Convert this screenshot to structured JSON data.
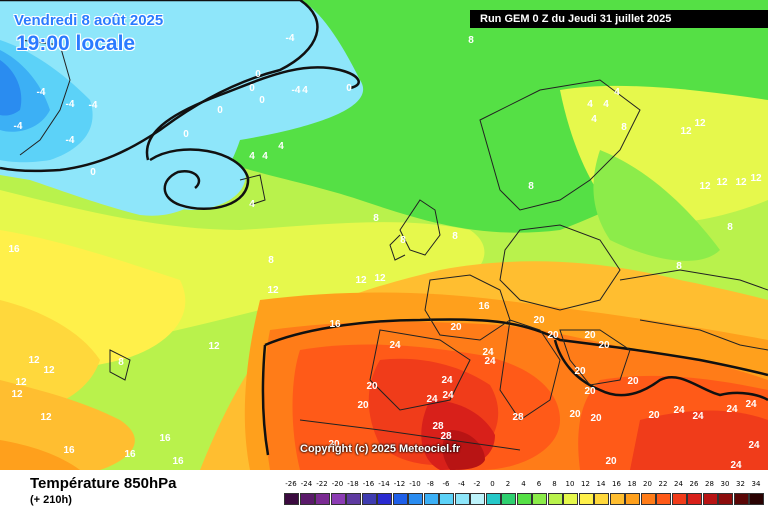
{
  "header": {
    "date": "Vendredi 8 août 2025",
    "time": "19:00 locale",
    "run_info": "Run GEM 0 Z du Jeudi 31 juillet 2025"
  },
  "copyright": "Copyright (c) 2025 Meteociel.fr",
  "footer": {
    "parameter": "Température 850hPa",
    "lead_time": "(+ 210h)"
  },
  "legend": {
    "values": [
      "-26",
      "-24",
      "-22",
      "-20",
      "-18",
      "-16",
      "-14",
      "-12",
      "-10",
      "-8",
      "-6",
      "-4",
      "-2",
      "0",
      "2",
      "4",
      "6",
      "8",
      "10",
      "12",
      "14",
      "16",
      "18",
      "20",
      "22",
      "24",
      "26",
      "28",
      "30",
      "32",
      "34"
    ],
    "colors": [
      "#3b0a3f",
      "#5a1a6a",
      "#7a2a92",
      "#8c3cb4",
      "#5e3aa0",
      "#3f3cb0",
      "#2a2ad0",
      "#1f5fe8",
      "#2a8cf0",
      "#3cb0f5",
      "#5cd2f8",
      "#8ee6fa",
      "#bdf3fb",
      "#26c8c8",
      "#2fd070",
      "#55e045",
      "#8cec4a",
      "#b9f24c",
      "#e6f84c",
      "#fff04a",
      "#ffd83c",
      "#ffbe30",
      "#ffa01c",
      "#ff7c18",
      "#ff5a18",
      "#f03c1a",
      "#d8201a",
      "#b81414",
      "#8c0c0c",
      "#5a0606",
      "#2a0202"
    ]
  },
  "temperature_labels": [
    {
      "text": "-4"
    },
    {
      "text": "-4"
    },
    {
      "text": "-4"
    },
    {
      "text": "-4"
    },
    {
      "text": "-4"
    },
    {
      "text": "-4"
    },
    {
      "text": "-4"
    },
    {
      "text": "0"
    },
    {
      "text": "0"
    },
    {
      "text": "0"
    },
    {
      "text": "0"
    },
    {
      "text": "0"
    },
    {
      "text": "0"
    },
    {
      "text": "0"
    },
    {
      "text": "4"
    },
    {
      "text": "4"
    },
    {
      "text": "4"
    },
    {
      "text": "4"
    },
    {
      "text": "4"
    },
    {
      "text": "4"
    },
    {
      "text": "4"
    },
    {
      "text": "4"
    },
    {
      "text": "4"
    },
    {
      "text": "8"
    },
    {
      "text": "8"
    },
    {
      "text": "8"
    },
    {
      "text": "8"
    },
    {
      "text": "8"
    },
    {
      "text": "8"
    },
    {
      "text": "8"
    },
    {
      "text": "8"
    },
    {
      "text": "8"
    },
    {
      "text": "8"
    },
    {
      "text": "12"
    },
    {
      "text": "12"
    },
    {
      "text": "12"
    },
    {
      "text": "12"
    },
    {
      "text": "12"
    },
    {
      "text": "12"
    },
    {
      "text": "12"
    },
    {
      "text": "12"
    },
    {
      "text": "12"
    },
    {
      "text": "12"
    },
    {
      "text": "12"
    },
    {
      "text": "12"
    },
    {
      "text": "12"
    },
    {
      "text": "12"
    },
    {
      "text": "12"
    },
    {
      "text": "16"
    },
    {
      "text": "16"
    },
    {
      "text": "16"
    },
    {
      "text": "16"
    },
    {
      "text": "16"
    },
    {
      "text": "16"
    },
    {
      "text": "16"
    },
    {
      "text": "20"
    },
    {
      "text": "20"
    },
    {
      "text": "20"
    },
    {
      "text": "20"
    },
    {
      "text": "20"
    },
    {
      "text": "20"
    },
    {
      "text": "20"
    },
    {
      "text": "20"
    },
    {
      "text": "20"
    },
    {
      "text": "20"
    },
    {
      "text": "20"
    },
    {
      "text": "20"
    },
    {
      "text": "20"
    },
    {
      "text": "20"
    },
    {
      "text": "20"
    },
    {
      "text": "24"
    },
    {
      "text": "24"
    },
    {
      "text": "24"
    },
    {
      "text": "24"
    },
    {
      "text": "24"
    },
    {
      "text": "24"
    },
    {
      "text": "24"
    },
    {
      "text": "24"
    },
    {
      "text": "24"
    },
    {
      "text": "24"
    },
    {
      "text": "24"
    },
    {
      "text": "24"
    },
    {
      "text": "28"
    },
    {
      "text": "28"
    },
    {
      "text": "28"
    }
  ]
}
